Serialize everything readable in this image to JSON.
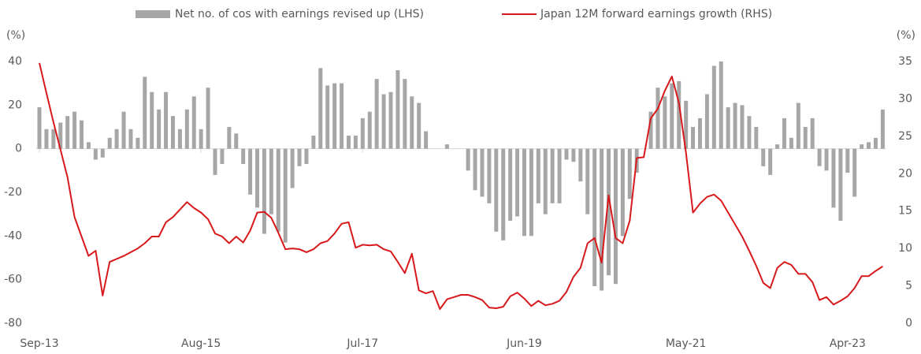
{
  "chart_data": {
    "type": "bar_line",
    "y_unit": "(%)",
    "y2_unit": "(%)",
    "categories": [
      "Sep-13",
      null,
      null,
      null,
      null,
      null,
      null,
      null,
      null,
      null,
      null,
      null,
      null,
      null,
      null,
      null,
      null,
      null,
      null,
      null,
      null,
      null,
      null,
      "Aug-15",
      null,
      null,
      null,
      null,
      null,
      null,
      null,
      null,
      null,
      null,
      null,
      null,
      null,
      null,
      null,
      null,
      null,
      null,
      null,
      null,
      null,
      null,
      "Jul-17",
      null,
      null,
      null,
      null,
      null,
      null,
      null,
      null,
      null,
      null,
      null,
      null,
      null,
      null,
      null,
      null,
      null,
      null,
      null,
      null,
      null,
      null,
      "Jun-19",
      null,
      null,
      null,
      null,
      null,
      null,
      null,
      null,
      null,
      null,
      null,
      null,
      null,
      null,
      null,
      null,
      null,
      null,
      null,
      null,
      null,
      null,
      "May-21",
      null,
      null,
      null,
      null,
      null,
      null,
      null,
      null,
      null,
      null,
      null,
      null,
      null,
      null,
      null,
      null,
      null,
      null,
      null,
      null,
      null,
      null,
      "Apr-23",
      null,
      null,
      null,
      null,
      null
    ],
    "series": [
      {
        "name": "Net no. of cos with earnings revised up (LHS)",
        "color": "#a6a6a6",
        "kind": "bar",
        "values": [
          19,
          9,
          9,
          12,
          15,
          17,
          13,
          3,
          -5,
          -4,
          5,
          9,
          17,
          9,
          5,
          33,
          26,
          18,
          26,
          15,
          9,
          18,
          24,
          9,
          28,
          -12,
          -7,
          10,
          7,
          -7,
          -21,
          -27,
          -39,
          -30,
          -38,
          -43,
          -18,
          -8,
          -7,
          6,
          37,
          29,
          30,
          30,
          6,
          6,
          14,
          17,
          32,
          25,
          26,
          36,
          32,
          24,
          21,
          8,
          0,
          0,
          2,
          0,
          0,
          -10,
          -19,
          -22,
          -25,
          -38,
          -42,
          -33,
          -31,
          -40,
          -40,
          -25,
          -30,
          -25,
          -25,
          -5,
          -6,
          -15,
          -30,
          -63,
          -65,
          -58,
          -62,
          -40,
          -23,
          -11,
          0,
          17,
          28,
          24,
          30,
          31,
          22,
          10,
          14,
          25,
          38,
          40,
          19,
          21,
          20,
          15,
          10,
          -8,
          -12,
          2,
          14,
          5,
          21,
          10,
          14,
          -8,
          -10,
          -27,
          -33,
          -11,
          -22,
          2,
          3,
          5,
          18
        ]
      },
      {
        "name": "Japan 12M forward earnings growth (RHS)",
        "color": "#d7191c",
        "kind": "line",
        "axis": "y2",
        "values": [
          34.8,
          30.8,
          26.9,
          23.2,
          19.5,
          14.2,
          11.6,
          9,
          9.7,
          3.7,
          8.2,
          8.6,
          9,
          9.5,
          10,
          10.7,
          11.6,
          11.6,
          13.5,
          14.2,
          15.2,
          16.2,
          15.4,
          14.8,
          13.9,
          12,
          11.6,
          10.7,
          11.6,
          10.8,
          12.4,
          14.8,
          14.9,
          14.1,
          12.1,
          9.9,
          10,
          9.9,
          9.5,
          9.9,
          10.7,
          11,
          12,
          13.3,
          13.5,
          10.1,
          10.5,
          10.4,
          10.5,
          9.9,
          9.6,
          8.2,
          6.7,
          9.3,
          4.4,
          4,
          4.3,
          1.9,
          3.2,
          3.5,
          3.8,
          3.8,
          3.5,
          3.1,
          2.1,
          2,
          2.2,
          3.6,
          4.1,
          3.3,
          2.3,
          3,
          2.4,
          2.6,
          3,
          4.2,
          6.2,
          7.4,
          10.7,
          11.4,
          8.1,
          17.1,
          11.4,
          10.7,
          13.7,
          22.1,
          22.2,
          27.4,
          28.7,
          31.1,
          33,
          29.5,
          22.9,
          14.8,
          16,
          16.9,
          17.2,
          16.4,
          14.8,
          13.2,
          11.6,
          9.7,
          7.7,
          5.4,
          4.7,
          7.4,
          8.2,
          7.8,
          6.6,
          6.6,
          5.5,
          3.1,
          3.5,
          2.5,
          3,
          3.6,
          4.7,
          6.3,
          6.3,
          7,
          7.6
        ]
      }
    ],
    "ylim": [
      -80,
      40
    ],
    "yticks": [
      40,
      20,
      0,
      -20,
      -40,
      -60,
      -80
    ],
    "y2lim": [
      0,
      35
    ],
    "y2ticks": [
      35,
      30,
      25,
      20,
      15,
      10,
      5,
      0
    ]
  }
}
